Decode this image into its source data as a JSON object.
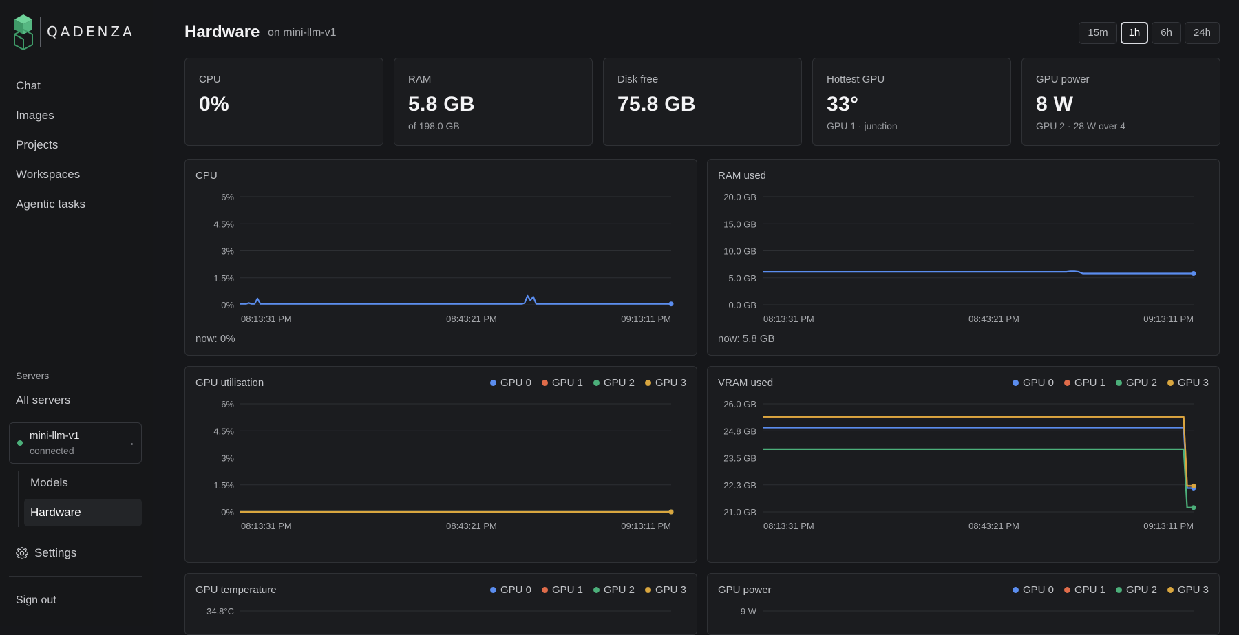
{
  "brand": {
    "name": "QADENZA"
  },
  "sidebar": {
    "nav": [
      "Chat",
      "Images",
      "Projects",
      "Workspaces",
      "Agentic tasks"
    ],
    "servers_heading": "Servers",
    "all_servers": "All servers",
    "server": {
      "name": "mini-llm-v1",
      "status": "connected",
      "status_color": "#4caf7a"
    },
    "subnav": [
      {
        "label": "Models",
        "active": false
      },
      {
        "label": "Hardware",
        "active": true
      }
    ],
    "settings": "Settings",
    "signout": "Sign out"
  },
  "header": {
    "title": "Hardware",
    "subtitle": "on mini-llm-v1",
    "ranges": [
      {
        "label": "15m",
        "active": false
      },
      {
        "label": "1h",
        "active": true
      },
      {
        "label": "6h",
        "active": false
      },
      {
        "label": "24h",
        "active": false
      }
    ]
  },
  "stats": [
    {
      "label": "CPU",
      "value": "0%",
      "sub": ""
    },
    {
      "label": "RAM",
      "value": "5.8 GB",
      "sub": "of 198.0 GB"
    },
    {
      "label": "Disk free",
      "value": "75.8 GB",
      "sub": ""
    },
    {
      "label": "Hottest GPU",
      "value": "33°",
      "sub": "GPU 1 · junction"
    },
    {
      "label": "GPU power",
      "value": "8 W",
      "sub": "GPU 2 · 28 W over 4"
    }
  ],
  "colors": {
    "GPU 0": "#5b8def",
    "GPU 1": "#e06c4a",
    "GPU 2": "#4caf7a",
    "GPU 3": "#d9a63f",
    "single": "#5b8def"
  },
  "legend": [
    "GPU 0",
    "GPU 1",
    "GPU 2",
    "GPU 3"
  ],
  "chart_data": [
    {
      "id": "cpu",
      "type": "line",
      "title": "CPU",
      "now": "now: 0%",
      "yticks": [
        "6%",
        "4.5%",
        "3%",
        "1.5%",
        "0%"
      ],
      "ylim": [
        0,
        6
      ],
      "xticks": [
        "08:13:31 PM",
        "08:43:21 PM",
        "09:13:11 PM"
      ],
      "series": [
        {
          "values": [
            0.05,
            0.05,
            0.05,
            0.1,
            0.05,
            0.05,
            0.35,
            0.05,
            0.05,
            0.05,
            0.05,
            0.05,
            0.05,
            0.05,
            0.05,
            0.05,
            0.05,
            0.05,
            0.05,
            0.05,
            0.05,
            0.05,
            0.05,
            0.05,
            0.05,
            0.05,
            0.05,
            0.05,
            0.05,
            0.05,
            0.05,
            0.05,
            0.05,
            0.05,
            0.05,
            0.05,
            0.05,
            0.05,
            0.05,
            0.05,
            0.05,
            0.05,
            0.05,
            0.05,
            0.05,
            0.05,
            0.05,
            0.05,
            0.05,
            0.05,
            0.05,
            0.05,
            0.05,
            0.05,
            0.05,
            0.05,
            0.05,
            0.05,
            0.05,
            0.05,
            0.05,
            0.05,
            0.05,
            0.05,
            0.05,
            0.05,
            0.05,
            0.05,
            0.05,
            0.05,
            0.05,
            0.05,
            0.05,
            0.05,
            0.05,
            0.05,
            0.05,
            0.05,
            0.05,
            0.05,
            0.05,
            0.05,
            0.05,
            0.05,
            0.05,
            0.05,
            0.05,
            0.05,
            0.05,
            0.05,
            0.05,
            0.05,
            0.05,
            0.05,
            0.05,
            0.05,
            0.05,
            0.05,
            0.05,
            0.1,
            0.5,
            0.25,
            0.45,
            0.05,
            0.05,
            0.05,
            0.05,
            0.05,
            0.05,
            0.05,
            0.05,
            0.05,
            0.05,
            0.05,
            0.05,
            0.05,
            0.05,
            0.05,
            0.05,
            0.05,
            0.05,
            0.05,
            0.05,
            0.05,
            0.05,
            0.05,
            0.05,
            0.05,
            0.05,
            0.05,
            0.05,
            0.05,
            0.05,
            0.05,
            0.05,
            0.05,
            0.05,
            0.05,
            0.05,
            0.05,
            0.05,
            0.05,
            0.05,
            0.05,
            0.05,
            0.05,
            0.05,
            0.05,
            0.05,
            0.05,
            0.05
          ]
        }
      ]
    },
    {
      "id": "ram",
      "type": "line",
      "title": "RAM used",
      "now": "now: 5.8 GB",
      "yticks": [
        "20.0 GB",
        "15.0 GB",
        "10.0 GB",
        "5.0 GB",
        "0.0 GB"
      ],
      "ylim": [
        0,
        20
      ],
      "xticks": [
        "08:13:31 PM",
        "08:43:21 PM",
        "09:13:11 PM"
      ],
      "series": [
        {
          "values": [
            6.1,
            6.1,
            6.1,
            6.1,
            6.1,
            6.1,
            6.1,
            6.1,
            6.1,
            6.1,
            6.1,
            6.1,
            6.1,
            6.1,
            6.1,
            6.1,
            6.1,
            6.1,
            6.1,
            6.1,
            6.1,
            6.1,
            6.1,
            6.1,
            6.1,
            6.1,
            6.1,
            6.1,
            6.1,
            6.1,
            6.1,
            6.1,
            6.1,
            6.1,
            6.1,
            6.1,
            6.1,
            6.1,
            6.1,
            6.1,
            6.1,
            6.1,
            6.1,
            6.1,
            6.1,
            6.1,
            6.1,
            6.1,
            6.1,
            6.1,
            6.1,
            6.1,
            6.1,
            6.1,
            6.1,
            6.1,
            6.1,
            6.1,
            6.1,
            6.1,
            6.1,
            6.1,
            6.1,
            6.1,
            6.1,
            6.1,
            6.1,
            6.1,
            6.1,
            6.1,
            6.1,
            6.1,
            6.1,
            6.1,
            6.1,
            6.2,
            6.2,
            6.1,
            5.8,
            5.8,
            5.8,
            5.8,
            5.8,
            5.8,
            5.8,
            5.8,
            5.8,
            5.8,
            5.8,
            5.8,
            5.8,
            5.8,
            5.8,
            5.8,
            5.8,
            5.8,
            5.8,
            5.8,
            5.8,
            5.8,
            5.8,
            5.8,
            5.8,
            5.8,
            5.8,
            5.8
          ]
        }
      ]
    },
    {
      "id": "gpu_util",
      "type": "line",
      "title": "GPU utilisation",
      "yticks": [
        "6%",
        "4.5%",
        "3%",
        "1.5%",
        "0%"
      ],
      "ylim": [
        0,
        6
      ],
      "xticks": [
        "08:13:31 PM",
        "08:43:21 PM",
        "09:13:11 PM"
      ],
      "series": [
        {
          "name": "GPU 0",
          "values": [
            0,
            0
          ]
        },
        {
          "name": "GPU 1",
          "values": [
            0,
            0
          ]
        },
        {
          "name": "GPU 2",
          "values": [
            0,
            0
          ]
        },
        {
          "name": "GPU 3",
          "values": [
            0,
            0
          ]
        }
      ]
    },
    {
      "id": "vram",
      "type": "line",
      "title": "VRAM used",
      "yticks": [
        "26.0 GB",
        "24.8 GB",
        "23.5 GB",
        "22.3 GB",
        "21.0 GB"
      ],
      "ylim": [
        21.0,
        26.0
      ],
      "xticks": [
        "08:13:31 PM",
        "08:43:21 PM",
        "09:13:11 PM"
      ],
      "series": [
        {
          "name": "GPU 0",
          "values": [
            24.9,
            24.9,
            24.9,
            22.1,
            22.1
          ]
        },
        {
          "name": "GPU 1",
          "values": [
            25.4,
            25.4,
            25.4,
            22.2,
            22.2
          ]
        },
        {
          "name": "GPU 2",
          "values": [
            23.9,
            23.9,
            23.9,
            21.2,
            21.2
          ]
        },
        {
          "name": "GPU 3",
          "values": [
            25.4,
            25.4,
            25.4,
            22.2,
            22.2
          ]
        }
      ]
    },
    {
      "id": "gpu_temp",
      "type": "line",
      "title": "GPU temperature",
      "yticks": [
        "34.8°C"
      ]
    },
    {
      "id": "gpu_power",
      "type": "line",
      "title": "GPU power",
      "yticks": [
        "9 W"
      ]
    }
  ]
}
